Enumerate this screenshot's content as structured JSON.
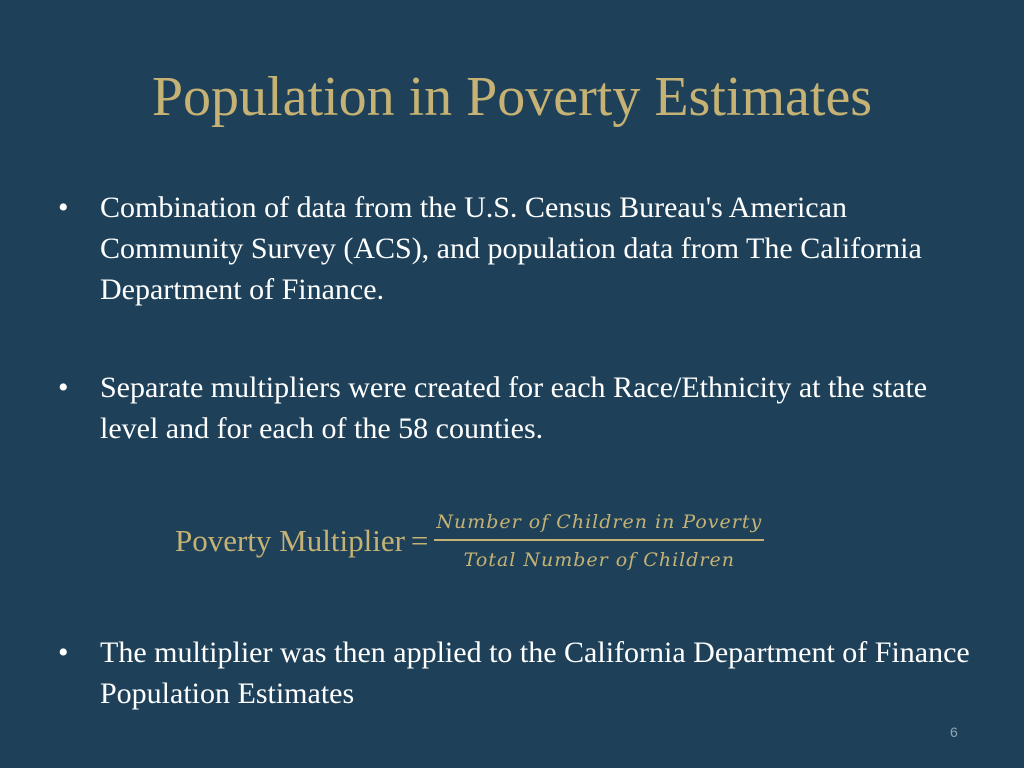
{
  "slide": {
    "title": "Population in Poverty Estimates",
    "bullets": [
      {
        "marker": "•",
        "text": "Combination of data from the U.S. Census Bureau's American Community Survey (ACS), and population data from The California Department of Finance."
      },
      {
        "marker": "•",
        "text": "Separate multipliers were created for each Race/Ethnicity at the state level and for each of the 58 counties."
      },
      {
        "marker": "•",
        "text": "The multiplier was then applied to the California Department of Finance Population Estimates"
      }
    ],
    "formula": {
      "lhs": "Poverty Multiplier",
      "equals": "=",
      "numerator": "Number of Children in Poverty",
      "denominator": "Total Number of Children"
    },
    "page_number": "6"
  },
  "colors": {
    "background": "#1e4159",
    "accent_gold": "#c5b274",
    "body_text": "#ffffff"
  }
}
